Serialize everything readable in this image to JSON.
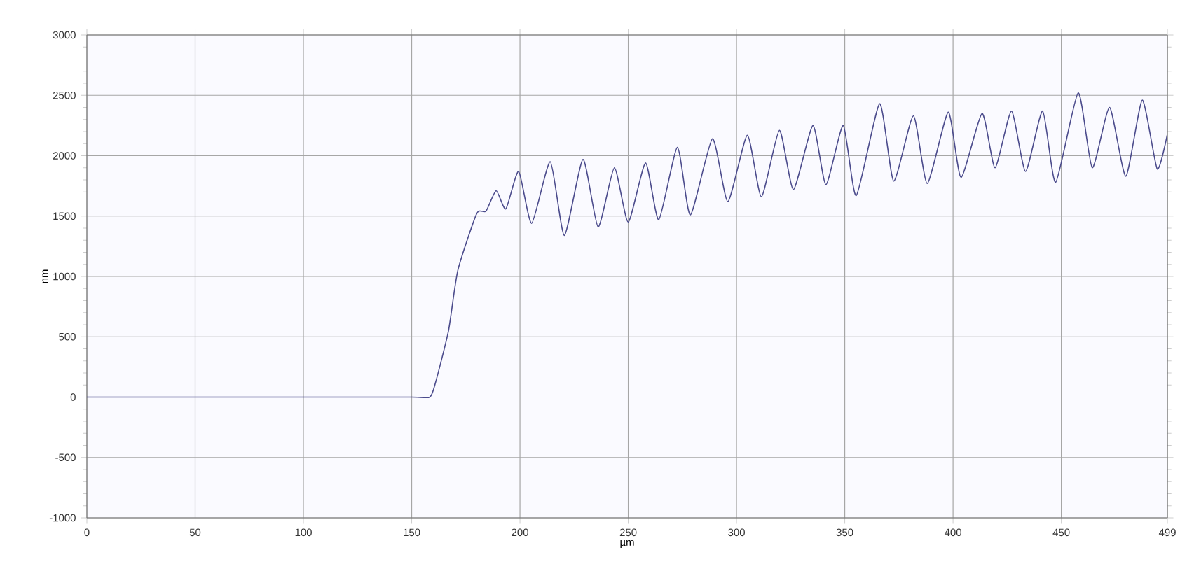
{
  "chart_data": {
    "type": "line",
    "xlabel": "µm",
    "ylabel": "nm",
    "xlim": [
      0,
      499
    ],
    "ylim": [
      -1000,
      3000
    ],
    "xticks": [
      0,
      50,
      100,
      150,
      200,
      250,
      300,
      350,
      400,
      450,
      499
    ],
    "yticks": [
      -1000,
      -500,
      0,
      500,
      1000,
      1500,
      2000,
      2500,
      3000
    ],
    "grid": true,
    "marker": "none",
    "line_style": "solid",
    "series": [
      {
        "color": "#4b4b8c",
        "x": [
          0,
          50,
          100,
          150,
          158.4,
          161,
          167,
          171.3,
          180,
          184.3,
          189,
          193.5,
          199.4,
          205.4,
          214,
          220.5,
          229.1,
          236.1,
          243.6,
          250,
          258,
          264.1,
          272.7,
          278.7,
          288.9,
          296,
          305,
          311.5,
          319.8,
          326.3,
          335.3,
          341.3,
          349.3,
          355.3,
          366.1,
          372.6,
          381.7,
          388.1,
          397.8,
          403.7,
          413.4,
          419.4,
          427,
          433.5,
          441.4,
          447.4,
          457.8,
          464.3,
          472.3,
          479.8,
          487.4,
          494.3,
          499
        ],
        "values": [
          0,
          0,
          0,
          0,
          0,
          120,
          550,
          1050,
          1520,
          1540,
          1710,
          1560,
          1870,
          1440,
          1950,
          1340,
          1970,
          1410,
          1900,
          1450,
          1940,
          1470,
          2070,
          1510,
          2140,
          1620,
          2170,
          1660,
          2210,
          1720,
          2250,
          1760,
          2250,
          1670,
          2430,
          1790,
          2330,
          1770,
          2360,
          1820,
          2350,
          1900,
          2370,
          1870,
          2370,
          1780,
          2520,
          1900,
          2400,
          1830,
          2460,
          1890,
          2180
        ]
      }
    ]
  }
}
